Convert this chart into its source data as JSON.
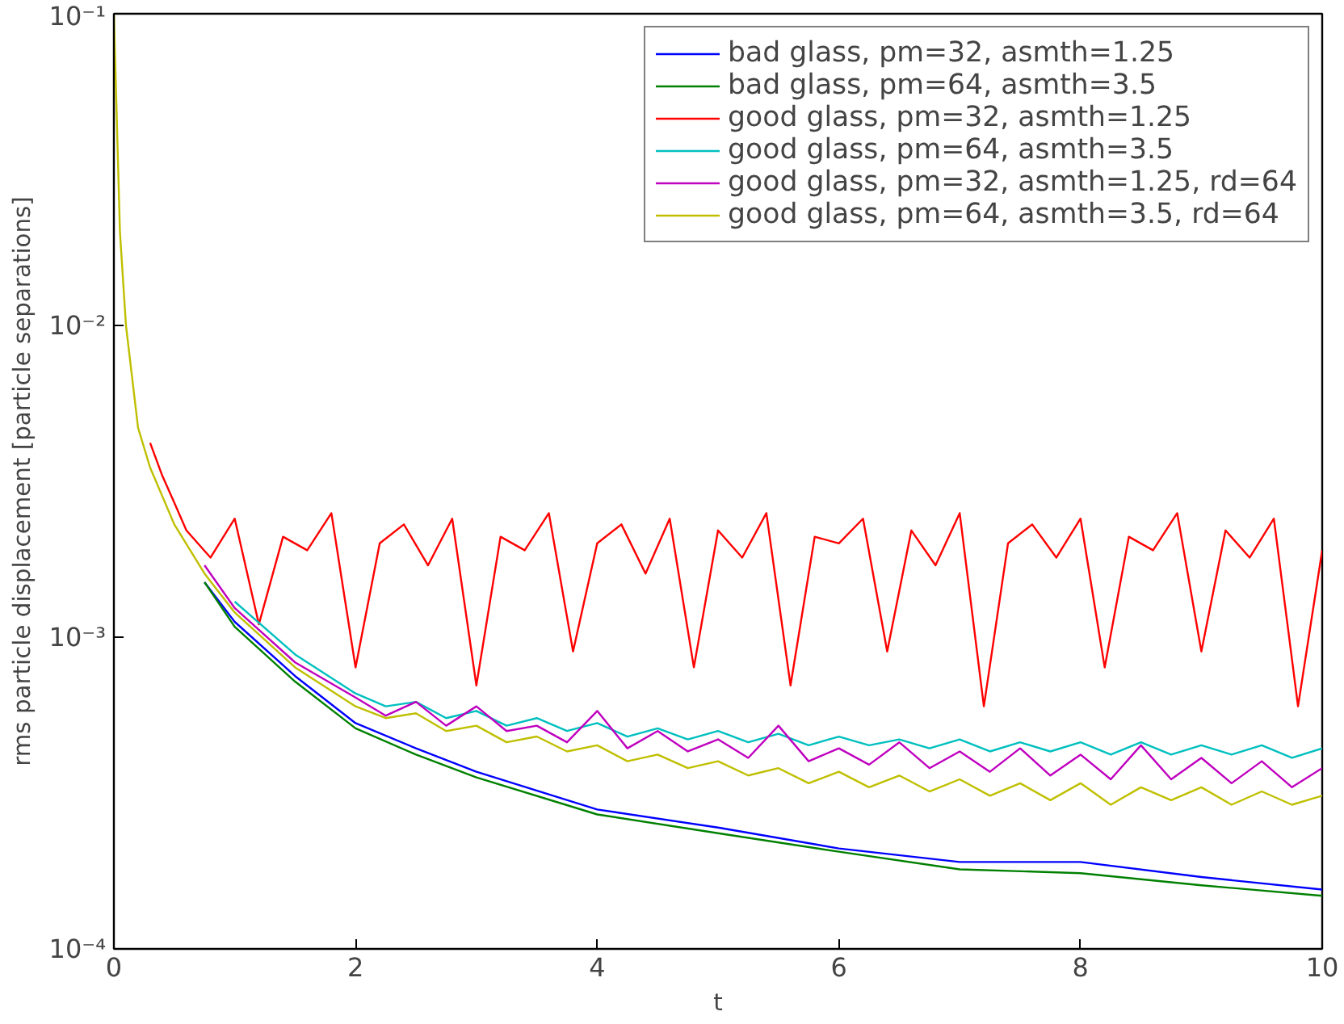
{
  "chart_data": {
    "type": "line",
    "xlabel": "t",
    "ylabel": "rms particle displacement [particle separations]",
    "log": "y",
    "xlim": [
      0,
      10
    ],
    "ylim": [
      0.0001,
      0.1
    ],
    "xticks": [
      0,
      2,
      4,
      6,
      8,
      10
    ],
    "yticks": [
      {
        "value": 0.0001,
        "label": "10⁻⁴"
      },
      {
        "value": 0.001,
        "label": "10⁻³"
      },
      {
        "value": 0.01,
        "label": "10⁻²"
      },
      {
        "value": 0.1,
        "label": "10⁻¹"
      }
    ],
    "grid": false,
    "legend": "top right",
    "marker": "none",
    "line_style": "solid",
    "series": [
      {
        "name": "bad glass, pm=32, asmth=1.25",
        "color": "#0000ff",
        "x": [
          0.75,
          1,
          1.5,
          2,
          2.5,
          3,
          4,
          5,
          6,
          7,
          8,
          9,
          10
        ],
        "values": [
          0.0015,
          0.00112,
          0.00075,
          0.00053,
          0.00044,
          0.00037,
          0.00028,
          0.000245,
          0.00021,
          0.00019,
          0.00019,
          0.00017,
          0.000155
        ]
      },
      {
        "name": "bad glass, pm=64, asmth=3.5",
        "color": "#008000",
        "x": [
          0.75,
          1,
          1.5,
          2,
          2.5,
          3,
          4,
          5,
          6,
          7,
          8,
          9,
          10
        ],
        "values": [
          0.0015,
          0.00108,
          0.00072,
          0.00051,
          0.00042,
          0.000355,
          0.00027,
          0.000235,
          0.000205,
          0.00018,
          0.000175,
          0.00016,
          0.000148
        ]
      },
      {
        "name": "good glass, pm=32, asmth=1.25",
        "color": "#ff0000",
        "x": [
          0.3,
          0.4,
          0.5,
          0.6,
          0.8,
          1,
          1.2,
          1.4,
          1.6,
          1.8,
          2,
          2.2,
          2.4,
          2.6,
          2.8,
          3,
          3.2,
          3.4,
          3.6,
          3.8,
          4,
          4.2,
          4.4,
          4.6,
          4.8,
          5,
          5.2,
          5.4,
          5.6,
          5.8,
          6,
          6.2,
          6.4,
          6.6,
          6.8,
          7,
          7.2,
          7.4,
          7.6,
          7.8,
          8,
          8.2,
          8.4,
          8.6,
          8.8,
          9,
          9.2,
          9.4,
          9.6,
          9.8,
          10
        ],
        "values": [
          0.0042,
          0.0033,
          0.0027,
          0.0022,
          0.0018,
          0.0024,
          0.0011,
          0.0021,
          0.0019,
          0.0025,
          0.0008,
          0.002,
          0.0023,
          0.0017,
          0.0024,
          0.0007,
          0.0021,
          0.0019,
          0.0025,
          0.0009,
          0.002,
          0.0023,
          0.0016,
          0.0024,
          0.0008,
          0.0022,
          0.0018,
          0.0025,
          0.0007,
          0.0021,
          0.002,
          0.0024,
          0.0009,
          0.0022,
          0.0017,
          0.0025,
          0.0006,
          0.002,
          0.0023,
          0.0018,
          0.0024,
          0.0008,
          0.0021,
          0.0019,
          0.0025,
          0.0009,
          0.0022,
          0.0018,
          0.0024,
          0.0006,
          0.0019
        ]
      },
      {
        "name": "good glass, pm=64, asmth=3.5",
        "color": "#00bfbf",
        "x": [
          1,
          1.5,
          2,
          2.25,
          2.5,
          2.75,
          3,
          3.25,
          3.5,
          3.75,
          4,
          4.25,
          4.5,
          4.75,
          5,
          5.25,
          5.5,
          5.75,
          6,
          6.25,
          6.5,
          6.75,
          7,
          7.25,
          7.5,
          7.75,
          8,
          8.25,
          8.5,
          8.75,
          9,
          9.25,
          9.5,
          9.75,
          10
        ],
        "values": [
          0.0013,
          0.00088,
          0.00066,
          0.0006,
          0.00062,
          0.00055,
          0.00058,
          0.00052,
          0.00055,
          0.0005,
          0.00053,
          0.00048,
          0.00051,
          0.00047,
          0.0005,
          0.00046,
          0.00049,
          0.00045,
          0.00048,
          0.00045,
          0.00047,
          0.00044,
          0.00047,
          0.00043,
          0.00046,
          0.00043,
          0.00046,
          0.00042,
          0.00046,
          0.00042,
          0.00045,
          0.00042,
          0.00045,
          0.00041,
          0.00044
        ]
      },
      {
        "name": "good glass, pm=32, asmth=1.25, rd=64",
        "color": "#bf00bf",
        "x": [
          0.75,
          1,
          1.5,
          2,
          2.25,
          2.5,
          2.75,
          3,
          3.25,
          3.5,
          3.75,
          4,
          4.25,
          4.5,
          4.75,
          5,
          5.25,
          5.5,
          5.75,
          6,
          6.25,
          6.5,
          6.75,
          7,
          7.25,
          7.5,
          7.75,
          8,
          8.25,
          8.5,
          8.75,
          9,
          9.25,
          9.5,
          9.75,
          10
        ],
        "values": [
          0.0017,
          0.00124,
          0.00083,
          0.00064,
          0.00056,
          0.00062,
          0.00052,
          0.0006,
          0.0005,
          0.00052,
          0.00046,
          0.00058,
          0.00044,
          0.0005,
          0.00043,
          0.00047,
          0.00041,
          0.00052,
          0.0004,
          0.00044,
          0.00039,
          0.00046,
          0.00038,
          0.00043,
          0.00037,
          0.00044,
          0.00036,
          0.00042,
          0.00035,
          0.00045,
          0.00035,
          0.00041,
          0.00034,
          0.0004,
          0.00033,
          0.00038
        ]
      },
      {
        "name": "good glass, pm=64, asmth=3.5, rd=64",
        "color": "#bfbf00",
        "x": [
          0,
          0.05,
          0.1,
          0.2,
          0.3,
          0.5,
          0.75,
          1,
          1.5,
          2,
          2.25,
          2.5,
          2.75,
          3,
          3.25,
          3.5,
          3.75,
          4,
          4.25,
          4.5,
          4.75,
          5,
          5.25,
          5.5,
          5.75,
          6,
          6.25,
          6.5,
          6.75,
          7,
          7.25,
          7.5,
          7.75,
          8,
          8.25,
          8.5,
          8.75,
          9,
          9.25,
          9.5,
          9.75,
          10
        ],
        "values": [
          0.1,
          0.02,
          0.01,
          0.0047,
          0.0035,
          0.0023,
          0.0016,
          0.0012,
          0.0008,
          0.0006,
          0.00055,
          0.00057,
          0.0005,
          0.00052,
          0.00046,
          0.00048,
          0.00043,
          0.00045,
          0.0004,
          0.00042,
          0.00038,
          0.0004,
          0.00036,
          0.00038,
          0.00034,
          0.00037,
          0.00033,
          0.00036,
          0.00032,
          0.00035,
          0.00031,
          0.00034,
          0.0003,
          0.00034,
          0.00029,
          0.00033,
          0.0003,
          0.00033,
          0.00029,
          0.00032,
          0.00029,
          0.00031
        ]
      }
    ]
  }
}
